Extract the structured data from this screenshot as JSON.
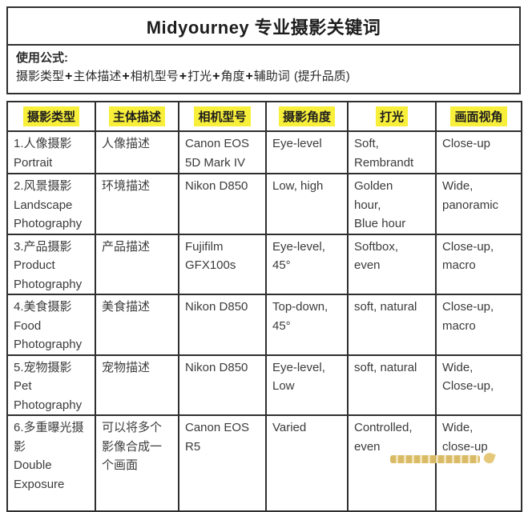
{
  "title": "Midyourney 专业摄影关键词",
  "formula": {
    "label": "使用公式:",
    "parts": [
      "摄影类型",
      "主体描述",
      "相机型号",
      "打光",
      "角度",
      "辅助词"
    ],
    "plus": "+",
    "suffix": "(提升品质)"
  },
  "colors": {
    "highlight_yellow": "#f8ef3b",
    "border": "#2f2f2f",
    "text": "#3b3b3b",
    "watermark_gold": "#d8b65c"
  },
  "table": {
    "headers": [
      "摄影类型",
      "主体描述",
      "相机型号",
      "摄影角度",
      "打光",
      "画面视角"
    ],
    "rows": [
      [
        "1.人像摄影\nPortrait",
        "人像描述",
        "Canon EOS\n5D Mark IV",
        "Eye-level",
        "Soft,\nRembrandt",
        "Close-up"
      ],
      [
        "2.风景摄影\nLandscape\nPhotography",
        "环境描述",
        "Nikon D850",
        "Low, high",
        "Golden\nhour,\nBlue hour",
        "Wide,\npanoramic"
      ],
      [
        "3.产品摄影\nProduct\nPhotography",
        "产品描述",
        "Fujifilm\nGFX100s",
        "Eye-level,\n45°",
        "Softbox,\neven",
        "Close-up,\nmacro"
      ],
      [
        "4.美食摄影\nFood\nPhotography",
        "美食描述",
        "Nikon D850",
        "Top-down,\n45°",
        "soft, natural",
        "Close-up,\nmacro"
      ],
      [
        "5.宠物摄影\nPet\nPhotography",
        "宠物描述",
        "Nikon D850",
        "Eye-level,\nLow",
        "soft, natural",
        "Wide,\nClose-up,"
      ],
      [
        "6.多重曝光摄\n影\nDouble\nExposure",
        "可以将多个\n影像合成一\n个画面",
        "Canon EOS\nR5",
        "Varied",
        "Controlled,\neven",
        "Wide,\nclose-up"
      ]
    ]
  }
}
